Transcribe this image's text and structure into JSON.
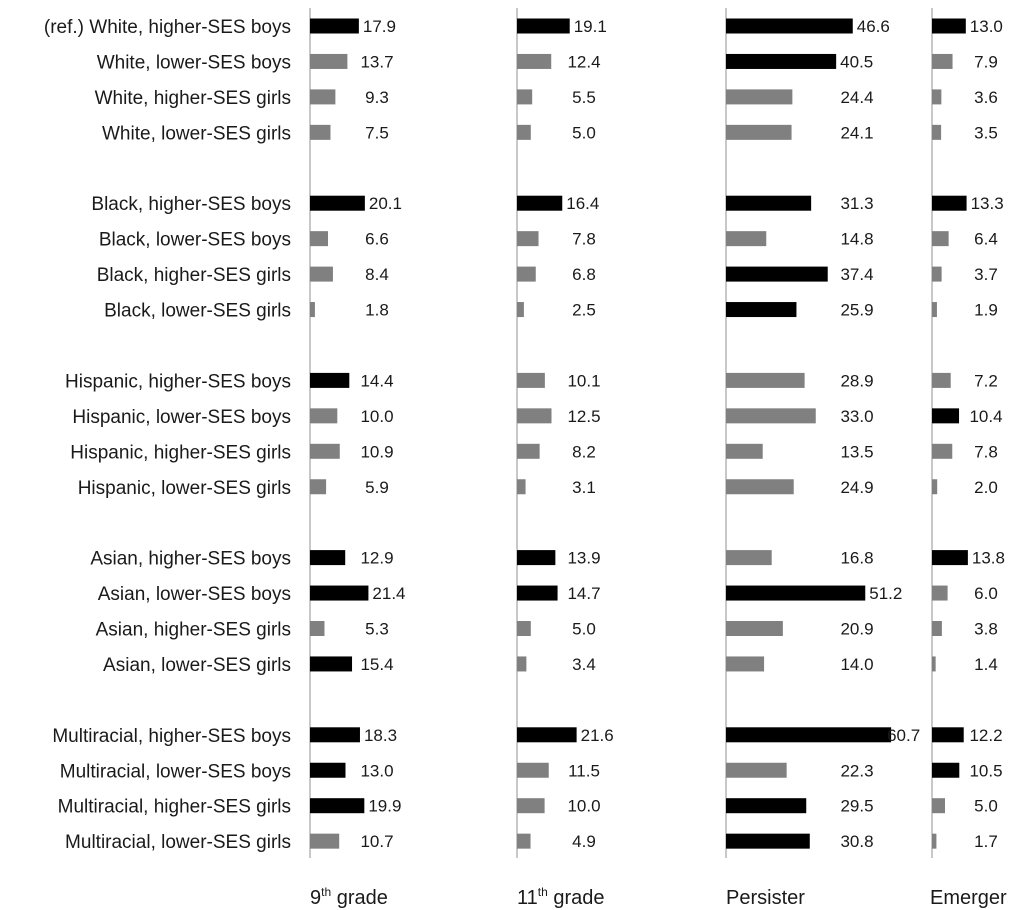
{
  "chart_data": {
    "type": "bar",
    "orientation": "horizontal",
    "categories": [
      "(ref.) White, higher-SES boys",
      "White, lower-SES boys",
      "White, higher-SES girls",
      "White, lower-SES girls",
      "Black, higher-SES boys",
      "Black, lower-SES boys",
      "Black, higher-SES girls",
      "Black, lower-SES girls",
      "Hispanic, higher-SES boys",
      "Hispanic, lower-SES boys",
      "Hispanic, higher-SES girls",
      "Hispanic, lower-SES girls",
      "Asian, higher-SES boys",
      "Asian, lower-SES boys",
      "Asian, higher-SES girls",
      "Asian, lower-SES girls",
      "Multiracial, higher-SES boys",
      "Multiracial, lower-SES boys",
      "Multiracial, higher-SES girls",
      "Multiracial, lower-SES girls"
    ],
    "groups": [
      "White",
      "Black",
      "Hispanic",
      "Asian",
      "Multiracial"
    ],
    "group_size": 4,
    "colors": {
      "highlight": "#000000",
      "other": "#808080",
      "axis": "#c8c8c8"
    },
    "panels": [
      {
        "label_main": "9",
        "label_sup": "th",
        "label_rest": " grade",
        "values": [
          17.9,
          13.7,
          9.3,
          7.5,
          20.1,
          6.6,
          8.4,
          1.8,
          14.4,
          10.0,
          10.9,
          5.9,
          12.9,
          21.4,
          5.3,
          15.4,
          18.3,
          13.0,
          19.9,
          10.7
        ],
        "labels": [
          "17.9",
          "13.7",
          "9.3",
          "7.5",
          "20.1",
          "6.6",
          "8.4",
          "1.8",
          "14.4",
          "10.0",
          "10.9",
          "5.9",
          "12.9",
          "21.4",
          "5.3",
          "15.4",
          "18.3",
          "13.0",
          "19.9",
          "10.7"
        ],
        "highlight": [
          true,
          false,
          false,
          false,
          true,
          false,
          false,
          false,
          true,
          false,
          false,
          false,
          true,
          true,
          false,
          true,
          true,
          true,
          true,
          false
        ]
      },
      {
        "label_main": "11",
        "label_sup": "th",
        "label_rest": " grade",
        "values": [
          19.1,
          12.4,
          5.5,
          5.0,
          16.4,
          7.8,
          6.8,
          2.5,
          10.1,
          12.5,
          8.2,
          3.1,
          13.9,
          14.7,
          5.0,
          3.4,
          21.6,
          11.5,
          10.0,
          4.9
        ],
        "labels": [
          "19.1",
          "12.4",
          "5.5",
          "5.0",
          "16.4",
          "7.8",
          "6.8",
          "2.5",
          "10.1",
          "12.5",
          "8.2",
          "3.1",
          "13.9",
          "14.7",
          "5.0",
          "3.4",
          "21.6",
          "11.5",
          "10.0",
          "4.9"
        ],
        "highlight": [
          true,
          false,
          false,
          false,
          true,
          false,
          false,
          false,
          false,
          false,
          false,
          false,
          true,
          true,
          false,
          false,
          true,
          false,
          false,
          false
        ]
      },
      {
        "label_main": "Persister",
        "label_sup": "",
        "label_rest": "",
        "values": [
          46.6,
          40.5,
          24.4,
          24.1,
          31.3,
          14.8,
          37.4,
          25.9,
          28.9,
          33.0,
          13.5,
          24.9,
          16.8,
          51.2,
          20.9,
          14.0,
          60.7,
          22.3,
          29.5,
          30.8
        ],
        "labels": [
          "46.6",
          "40.5",
          "24.4",
          "24.1",
          "31.3",
          "14.8",
          "37.4",
          "25.9",
          "28.9",
          "33.0",
          "13.5",
          "24.9",
          "16.8",
          "51.2",
          "20.9",
          "14.0",
          "60.7",
          "22.3",
          "29.5",
          "30.8"
        ],
        "highlight": [
          true,
          true,
          false,
          false,
          true,
          false,
          true,
          true,
          false,
          false,
          false,
          false,
          false,
          true,
          false,
          false,
          true,
          false,
          true,
          true
        ]
      },
      {
        "label_main": "Emerger",
        "label_sup": "",
        "label_rest": "",
        "values": [
          13.0,
          7.9,
          3.6,
          3.5,
          13.3,
          6.4,
          3.7,
          1.9,
          7.2,
          10.4,
          7.8,
          2.0,
          13.8,
          6.0,
          3.8,
          1.4,
          12.2,
          10.5,
          5.0,
          1.7
        ],
        "labels": [
          "13.0",
          "7.9",
          "3.6",
          "3.5",
          "13.3",
          "6.4",
          "3.7",
          "1.9",
          "7.2",
          "10.4",
          "7.8",
          "2.0",
          "13.8",
          "6.0",
          "3.8",
          "1.4",
          "12.2",
          "10.5",
          "5.0",
          "1.7"
        ],
        "highlight": [
          true,
          false,
          false,
          false,
          true,
          false,
          false,
          false,
          false,
          true,
          false,
          false,
          true,
          false,
          false,
          false,
          true,
          true,
          false,
          false
        ]
      }
    ]
  }
}
